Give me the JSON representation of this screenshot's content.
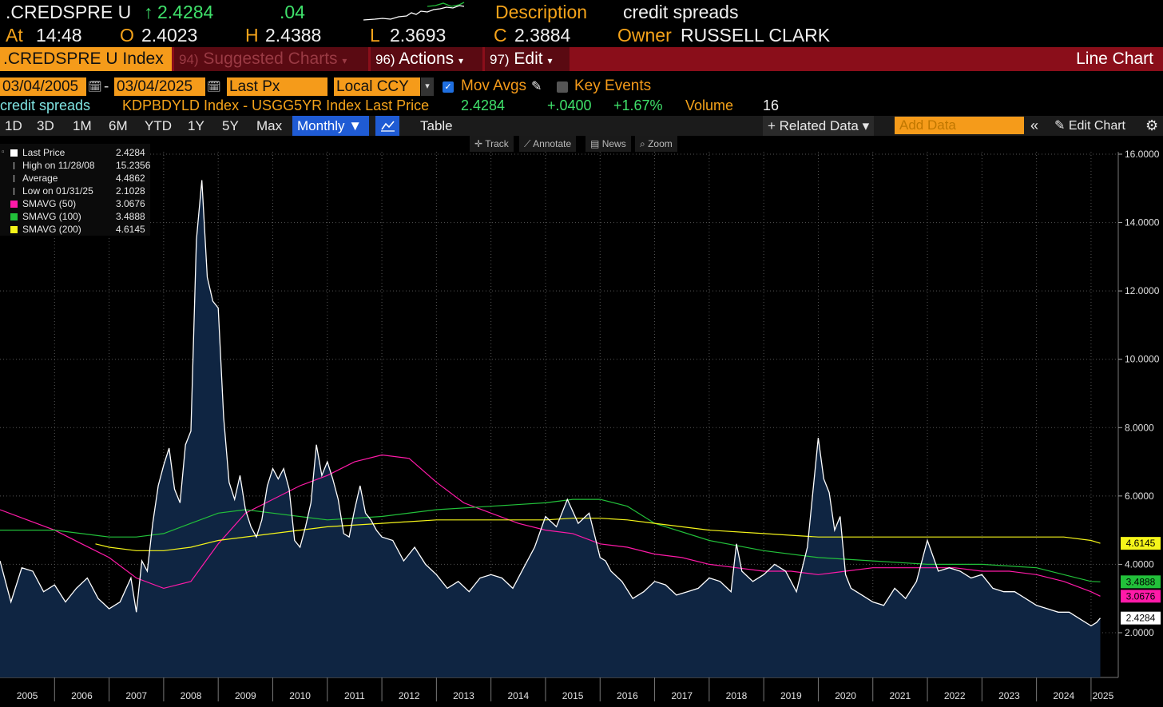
{
  "header": {
    "ticker": ".CREDSPRE U",
    "last_arrow": "↑",
    "last": "2.4284",
    "change": ".04",
    "description_label": "Description",
    "description": "credit spreads",
    "at_label": "At",
    "time": "14:48",
    "open_label": "O",
    "open": "2.4023",
    "high_label": "H",
    "high": "2.4388",
    "low_label": "L",
    "low": "2.3693",
    "close_label": "C",
    "close": "2.3884",
    "owner_label": "Owner",
    "owner": "RUSSELL CLARK"
  },
  "titlebar": {
    "index_name": ".CREDSPRE U Index",
    "suggested_num": "94)",
    "suggested": "Suggested Charts",
    "actions_num": "96)",
    "actions": "Actions",
    "edit_num": "97)",
    "edit": "Edit",
    "chart_type": "Line Chart"
  },
  "controls": {
    "start_date": "03/04/2005",
    "end_date": "03/04/2025",
    "date_sep": "-",
    "field": "Last Px",
    "currency": "Local CCY",
    "mov_avgs": "Mov Avgs",
    "key_events": "Key Events"
  },
  "infoline": {
    "name": "credit spreads",
    "formula": "KDPBDYLD Index - USGG5YR Index Last Price",
    "last": "2.4284",
    "change": "+.0400",
    "pct": "+1.67%",
    "volume_label": "Volume",
    "volume": "16"
  },
  "toolbar": {
    "periods": [
      "1D",
      "3D",
      "1M",
      "6M",
      "YTD",
      "1Y",
      "5Y",
      "Max"
    ],
    "frequency": "Monthly ▼",
    "table": "Table",
    "related": "+ Related Data ▾",
    "add_data_placeholder": "Add Data",
    "edit_chart": "Edit Chart"
  },
  "chart_tools": [
    "Track",
    "Annotate",
    "News",
    "Zoom"
  ],
  "legend": [
    {
      "label": "Last Price",
      "value": "2.4284",
      "color": "#ffffff"
    },
    {
      "label": "High on 11/28/08",
      "value": "15.2356",
      "color": "#ffffff"
    },
    {
      "label": "Average",
      "value": "4.4862",
      "color": "#ffffff"
    },
    {
      "label": "Low on 01/31/25",
      "value": "2.1028",
      "color": "#ffffff"
    },
    {
      "label": "SMAVG (50)",
      "value": "3.0676",
      "color": "#ff1aa8"
    },
    {
      "label": "SMAVG (100)",
      "value": "3.4888",
      "color": "#22c03a"
    },
    {
      "label": "SMAVG (200)",
      "value": "4.6145",
      "color": "#f5f51a"
    }
  ],
  "badges": [
    {
      "value": "4.6145",
      "color": "#f5f51a",
      "y": 4.6145
    },
    {
      "value": "3.4888",
      "color": "#22c03a",
      "y": 3.4888
    },
    {
      "value": "3.0676",
      "color": "#ff1aa8",
      "y": 3.0676
    },
    {
      "value": "2.4284",
      "color": "#ffffff",
      "y": 2.4284
    }
  ],
  "chart_data": {
    "type": "area",
    "title": "credit spreads",
    "xlabel": "",
    "ylabel": "",
    "x_ticks": [
      "2005",
      "2006",
      "2007",
      "2008",
      "2009",
      "2010",
      "2011",
      "2012",
      "2013",
      "2014",
      "2015",
      "2016",
      "2017",
      "2018",
      "2019",
      "2020",
      "2021",
      "2022",
      "2023",
      "2024",
      "2025"
    ],
    "y_ticks": [
      "2.0000",
      "4.0000",
      "6.0000",
      "8.0000",
      "10.0000",
      "12.0000",
      "14.0000",
      "16.0000"
    ],
    "ylim": [
      0.8,
      16.2
    ],
    "xlim": [
      2005.0,
      2025.25
    ],
    "grid": true,
    "colors": {
      "price": "#ffffff",
      "fill": "#0f2542",
      "sma50": "#ff1aa8",
      "sma100": "#22c03a",
      "sma200": "#f5f51a"
    },
    "series": [
      {
        "name": "Last Price",
        "x": [
          2005.0,
          2005.2,
          2005.4,
          2005.6,
          2005.8,
          2006.0,
          2006.2,
          2006.4,
          2006.6,
          2006.8,
          2007.0,
          2007.2,
          2007.4,
          2007.5,
          2007.6,
          2007.7,
          2007.8,
          2007.9,
          2008.0,
          2008.1,
          2008.2,
          2008.3,
          2008.4,
          2008.5,
          2008.6,
          2008.7,
          2008.8,
          2008.9,
          2009.0,
          2009.1,
          2009.2,
          2009.3,
          2009.4,
          2009.5,
          2009.6,
          2009.7,
          2009.8,
          2009.9,
          2010.0,
          2010.1,
          2010.2,
          2010.3,
          2010.4,
          2010.5,
          2010.6,
          2010.7,
          2010.8,
          2010.9,
          2011.0,
          2011.1,
          2011.2,
          2011.3,
          2011.4,
          2011.5,
          2011.6,
          2011.7,
          2011.8,
          2011.9,
          2012.0,
          2012.2,
          2012.4,
          2012.6,
          2012.8,
          2013.0,
          2013.2,
          2013.4,
          2013.6,
          2013.8,
          2014.0,
          2014.2,
          2014.4,
          2014.6,
          2014.8,
          2015.0,
          2015.2,
          2015.4,
          2015.6,
          2015.8,
          2016.0,
          2016.1,
          2016.2,
          2016.4,
          2016.6,
          2016.8,
          2017.0,
          2017.2,
          2017.4,
          2017.6,
          2017.8,
          2018.0,
          2018.2,
          2018.4,
          2018.5,
          2018.6,
          2018.8,
          2019.0,
          2019.2,
          2019.4,
          2019.6,
          2019.8,
          2020.0,
          2020.1,
          2020.2,
          2020.3,
          2020.4,
          2020.5,
          2020.6,
          2020.8,
          2021.0,
          2021.2,
          2021.4,
          2021.6,
          2021.8,
          2022.0,
          2022.2,
          2022.4,
          2022.6,
          2022.8,
          2023.0,
          2023.2,
          2023.4,
          2023.6,
          2023.8,
          2024.0,
          2024.2,
          2024.4,
          2024.6,
          2024.8,
          2025.0,
          2025.1,
          2025.17
        ],
        "y": [
          4.1,
          2.9,
          3.9,
          3.8,
          3.2,
          3.4,
          2.9,
          3.3,
          3.6,
          3.0,
          2.7,
          2.9,
          3.6,
          2.6,
          4.1,
          3.8,
          5.2,
          6.3,
          6.9,
          7.4,
          6.2,
          5.8,
          7.5,
          7.9,
          13.5,
          15.24,
          12.4,
          11.7,
          11.5,
          8.3,
          6.4,
          5.9,
          6.6,
          5.6,
          5.1,
          4.8,
          5.3,
          6.3,
          6.8,
          6.5,
          6.8,
          6.2,
          4.7,
          4.5,
          5.1,
          5.8,
          7.5,
          6.6,
          7.0,
          6.5,
          5.9,
          4.9,
          4.8,
          5.6,
          6.3,
          5.5,
          5.3,
          5.0,
          4.8,
          4.7,
          4.1,
          4.5,
          4.0,
          3.7,
          3.3,
          3.5,
          3.2,
          3.6,
          3.7,
          3.6,
          3.3,
          3.9,
          4.5,
          5.4,
          5.1,
          5.9,
          5.2,
          5.5,
          4.2,
          4.1,
          3.8,
          3.5,
          3.0,
          3.2,
          3.5,
          3.4,
          3.1,
          3.2,
          3.3,
          3.6,
          3.5,
          3.2,
          4.6,
          3.8,
          3.5,
          3.7,
          4.0,
          3.8,
          3.2,
          4.5,
          7.7,
          6.5,
          6.1,
          5.0,
          5.4,
          3.7,
          3.3,
          3.1,
          2.9,
          2.8,
          3.3,
          3.0,
          3.5,
          4.7,
          3.8,
          3.9,
          3.8,
          3.6,
          3.7,
          3.3,
          3.2,
          3.2,
          3.0,
          2.8,
          2.7,
          2.6,
          2.6,
          2.4,
          2.2,
          2.3,
          2.4284
        ]
      },
      {
        "name": "SMAVG (50)",
        "x": [
          2005.0,
          2005.5,
          2006.0,
          2006.5,
          2007.0,
          2007.5,
          2008.0,
          2008.5,
          2009.0,
          2009.5,
          2010.0,
          2010.5,
          2011.0,
          2011.5,
          2012.0,
          2012.5,
          2013.0,
          2013.5,
          2014.0,
          2014.5,
          2015.0,
          2015.5,
          2016.0,
          2016.5,
          2017.0,
          2017.5,
          2018.0,
          2018.5,
          2019.0,
          2019.5,
          2020.0,
          2020.5,
          2021.0,
          2021.5,
          2022.0,
          2022.5,
          2023.0,
          2023.5,
          2024.0,
          2024.5,
          2025.0,
          2025.17
        ],
        "y": [
          5.6,
          5.3,
          5.0,
          4.6,
          4.2,
          3.6,
          3.3,
          3.5,
          4.6,
          5.5,
          5.9,
          6.3,
          6.6,
          7.0,
          7.2,
          7.1,
          6.4,
          5.8,
          5.5,
          5.2,
          5.0,
          4.9,
          4.6,
          4.5,
          4.3,
          4.2,
          4.0,
          3.9,
          3.8,
          3.8,
          3.7,
          3.8,
          3.9,
          3.9,
          3.9,
          3.9,
          3.8,
          3.8,
          3.7,
          3.5,
          3.2,
          3.0676
        ]
      },
      {
        "name": "SMAVG (100)",
        "x": [
          2005.0,
          2006.0,
          2007.0,
          2007.5,
          2008.0,
          2008.5,
          2009.0,
          2009.5,
          2010.0,
          2011.0,
          2012.0,
          2013.0,
          2014.0,
          2015.0,
          2015.5,
          2016.0,
          2016.5,
          2017.0,
          2018.0,
          2019.0,
          2020.0,
          2021.0,
          2022.0,
          2023.0,
          2024.0,
          2024.5,
          2025.0,
          2025.17
        ],
        "y": [
          5.0,
          5.0,
          4.8,
          4.8,
          4.9,
          5.2,
          5.5,
          5.6,
          5.5,
          5.3,
          5.4,
          5.6,
          5.7,
          5.8,
          5.9,
          5.9,
          5.7,
          5.2,
          4.7,
          4.4,
          4.2,
          4.1,
          4.0,
          4.0,
          3.9,
          3.7,
          3.5,
          3.4888
        ]
      },
      {
        "name": "SMAVG (200)",
        "x": [
          2006.75,
          2007.0,
          2007.5,
          2008.0,
          2008.5,
          2009.0,
          2010.0,
          2011.0,
          2012.0,
          2013.0,
          2014.0,
          2015.0,
          2015.5,
          2016.0,
          2016.5,
          2017.0,
          2018.0,
          2019.0,
          2020.0,
          2021.0,
          2022.0,
          2023.0,
          2024.0,
          2024.5,
          2025.0,
          2025.17
        ],
        "y": [
          4.6,
          4.5,
          4.4,
          4.4,
          4.5,
          4.7,
          4.9,
          5.1,
          5.2,
          5.3,
          5.3,
          5.3,
          5.35,
          5.35,
          5.3,
          5.2,
          5.0,
          4.9,
          4.8,
          4.8,
          4.8,
          4.8,
          4.8,
          4.8,
          4.7,
          4.6145
        ]
      }
    ]
  }
}
